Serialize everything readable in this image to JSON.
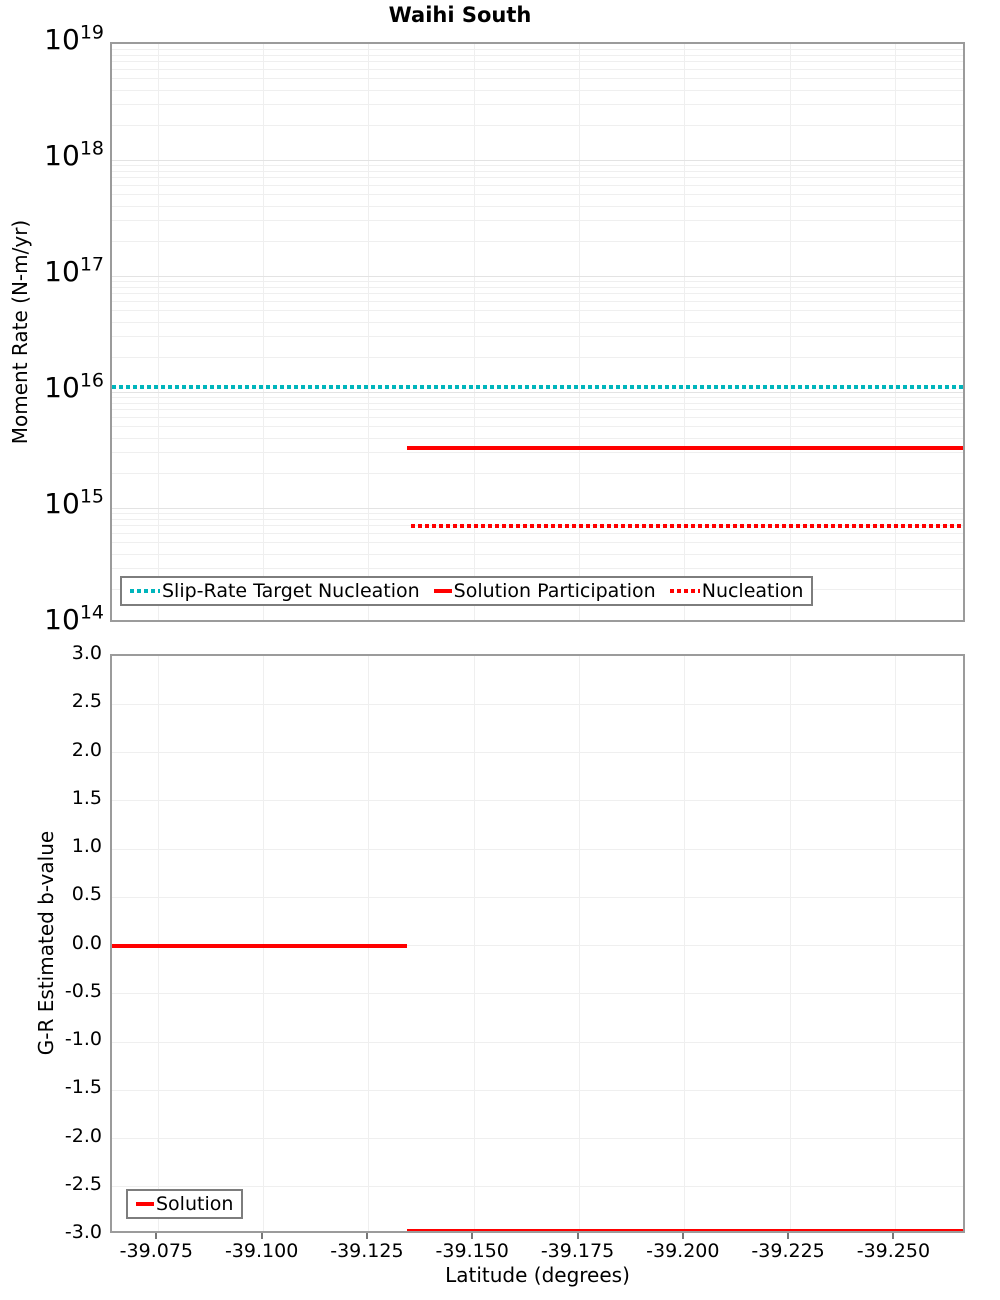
{
  "title": "Waihi South",
  "xlabel": "Latitude (degrees)",
  "x_tick_labels": [
    "-39.075",
    "-39.100",
    "-39.125",
    "-39.150",
    "-39.175",
    "-39.200",
    "-39.225",
    "-39.250"
  ],
  "x_tick_values": [
    -39.075,
    -39.1,
    -39.125,
    -39.15,
    -39.175,
    -39.2,
    -39.225,
    -39.25
  ],
  "panels": {
    "top": {
      "ylabel": "Moment Rate (N-m/yr)",
      "y_tick_base": "10",
      "y_tick_exponents": [
        "19",
        "18",
        "17",
        "16",
        "15",
        "14"
      ],
      "legend": [
        {
          "label": "Slip-Rate Target Nucleation",
          "color": "#00B5BC",
          "style": "dotted"
        },
        {
          "label": "Solution Participation",
          "color": "#FF0000",
          "style": "solid"
        },
        {
          "label": "Nucleation",
          "color": "#FF0000",
          "style": "dotted"
        }
      ]
    },
    "bottom": {
      "ylabel": "G-R Estimated b-value",
      "y_tick_labels": [
        "3.0",
        "2.5",
        "2.0",
        "1.5",
        "1.0",
        "0.5",
        "0.0",
        "-0.5",
        "-1.0",
        "-1.5",
        "-2.0",
        "-2.5",
        "-3.0"
      ],
      "legend": [
        {
          "label": "Solution",
          "color": "#FF0000",
          "style": "solid"
        }
      ]
    }
  },
  "colors": {
    "accent_teal": "#00B5BC",
    "accent_red": "#FF0000",
    "axis_border": "#9b9b9b",
    "grid_minor": "#efefef",
    "grid_major": "#e3e3e3",
    "tick_mark": "#777777"
  },
  "chart_data": [
    {
      "type": "line",
      "title": "Waihi South",
      "xlabel": "Latitude (degrees)",
      "ylabel": "Moment Rate (N-m/yr)",
      "x_axis": {
        "max": -39.064,
        "min": -39.267,
        "reversed": true,
        "ticks": [
          -39.075,
          -39.1,
          -39.125,
          -39.15,
          -39.175,
          -39.2,
          -39.225,
          -39.25
        ]
      },
      "y_axis": {
        "scale": "log",
        "min": 100000000000000.0,
        "max": 1e+19
      },
      "grid": true,
      "legend_position": "bottom-left",
      "series": [
        {
          "name": "Slip-Rate Target Nucleation",
          "color": "#00B5BC",
          "style": "dotted",
          "segments": [
            {
              "x": [
                -39.064,
                -39.267
              ],
              "y": 1.1e+16
            }
          ]
        },
        {
          "name": "Solution Participation",
          "color": "#FF0000",
          "style": "solid",
          "segments": [
            {
              "x": [
                -39.134,
                -39.267
              ],
              "y": 3300000000000000.0
            }
          ]
        },
        {
          "name": "Nucleation",
          "color": "#FF0000",
          "style": "dotted",
          "segments": [
            {
              "x": [
                -39.135,
                -39.267
              ],
              "y": 700000000000000.0
            }
          ]
        }
      ]
    },
    {
      "type": "line",
      "xlabel": "Latitude (degrees)",
      "ylabel": "G-R Estimated b-value",
      "x_axis": {
        "max": -39.064,
        "min": -39.267,
        "reversed": true,
        "ticks": [
          -39.075,
          -39.1,
          -39.125,
          -39.15,
          -39.175,
          -39.2,
          -39.225,
          -39.25
        ]
      },
      "y_axis": {
        "scale": "linear",
        "min": -3.0,
        "max": 3.0,
        "tick_step": 0.5
      },
      "grid": true,
      "legend_position": "bottom-left",
      "series": [
        {
          "name": "Solution",
          "color": "#FF0000",
          "style": "solid",
          "segments": [
            {
              "x": [
                -39.064,
                -39.134
              ],
              "y": 0.0
            },
            {
              "x": [
                -39.134,
                -39.267
              ],
              "y": -3.0
            }
          ]
        }
      ]
    }
  ]
}
